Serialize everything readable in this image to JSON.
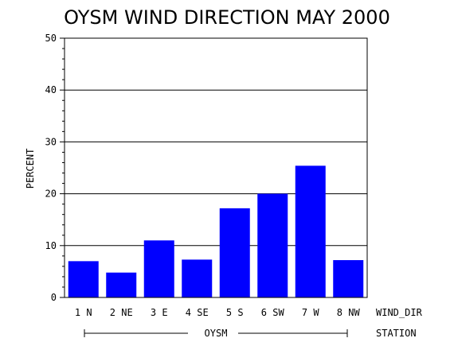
{
  "chart_data": {
    "type": "bar",
    "title": "OYSM WIND DIRECTION MAY 2000",
    "ylabel": "PERCENT",
    "xlabel": "WIND_DIR",
    "group_axis_label": "STATION",
    "group_label": "OYSM",
    "categories": [
      "1 N",
      "2 NE",
      "3 E",
      "4 SE",
      "5 S",
      "6 SW",
      "7 W",
      "8 NW"
    ],
    "values": [
      7.0,
      4.8,
      11.0,
      7.3,
      17.2,
      20.0,
      25.4,
      7.2
    ],
    "ylim": [
      0,
      50
    ],
    "yticks": [
      0,
      10,
      20,
      30,
      40,
      50
    ],
    "grid": true,
    "bar_color": "#0000ff"
  }
}
